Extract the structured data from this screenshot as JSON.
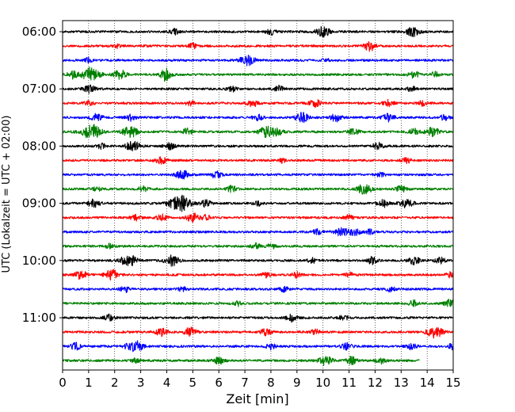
{
  "chart_data": {
    "type": "line",
    "subtype": "helicorder",
    "xlabel": "Zeit  [min]",
    "ylabel": "UTC (Lokalzeit = UTC + 02:00)",
    "xlim": [
      0,
      15
    ],
    "x_ticks": [
      0,
      1,
      2,
      3,
      4,
      5,
      6,
      7,
      8,
      9,
      10,
      11,
      12,
      13,
      14,
      15
    ],
    "y_tick_labels": [
      "06:00",
      "07:00",
      "08:00",
      "09:00",
      "10:00",
      "11:00"
    ],
    "grid": "vertical-dotted",
    "legend": "none",
    "trace_interval_minutes": 15,
    "trace_colors": [
      "#000000",
      "#ff0000",
      "#0000ff",
      "#008000"
    ],
    "traces": [
      {
        "start": "06:00",
        "color": "#000000",
        "events": [
          [
            4.3,
            0.3
          ],
          [
            8,
            0.35
          ],
          [
            10,
            0.6
          ],
          [
            13.45,
            0.55
          ]
        ]
      },
      {
        "start": "06:15",
        "color": "#ff0000",
        "events": [
          [
            2.1,
            0.2
          ],
          [
            5,
            0.3
          ],
          [
            11.8,
            0.55
          ]
        ]
      },
      {
        "start": "06:30",
        "color": "#0000ff",
        "events": [
          [
            1,
            0.3
          ],
          [
            7.1,
            0.65
          ],
          [
            10.1,
            0.2
          ]
        ]
      },
      {
        "start": "06:45",
        "color": "#008000",
        "events": [
          [
            0.4,
            0.45
          ],
          [
            1.1,
            0.85
          ],
          [
            2.2,
            0.55
          ],
          [
            3.9,
            0.35
          ],
          [
            4.0,
            0.45
          ],
          [
            13.5,
            0.4
          ],
          [
            14.3,
            0.3
          ]
        ]
      },
      {
        "start": "07:00",
        "color": "#000000",
        "events": [
          [
            1.0,
            0.5
          ],
          [
            6.5,
            0.3
          ],
          [
            8.3,
            0.35
          ],
          [
            13.4,
            0.3
          ]
        ]
      },
      {
        "start": "07:15",
        "color": "#ff0000",
        "events": [
          [
            1.0,
            0.3
          ],
          [
            4.9,
            0.3
          ],
          [
            7.3,
            0.4
          ],
          [
            9.7,
            0.45
          ],
          [
            12.5,
            0.4
          ],
          [
            13.8,
            0.3
          ]
        ]
      },
      {
        "start": "07:30",
        "color": "#0000ff",
        "events": [
          [
            1.3,
            0.45
          ],
          [
            2.6,
            0.4
          ],
          [
            7.5,
            0.35
          ],
          [
            9.2,
            0.55
          ],
          [
            10.5,
            0.45
          ],
          [
            12.5,
            0.45
          ],
          [
            14.7,
            0.35
          ]
        ]
      },
      {
        "start": "07:45",
        "color": "#008000",
        "events": [
          [
            1.1,
            0.9
          ],
          [
            2.6,
            0.65
          ],
          [
            4.8,
            0.4
          ],
          [
            7.8,
            0.6
          ],
          [
            8.2,
            0.5
          ],
          [
            11.2,
            0.4
          ],
          [
            13.5,
            0.35
          ],
          [
            14.2,
            0.55
          ]
        ]
      },
      {
        "start": "08:00",
        "color": "#000000",
        "events": [
          [
            1.5,
            0.3
          ],
          [
            2.7,
            0.6
          ],
          [
            4.1,
            0.4
          ],
          [
            12.1,
            0.4
          ]
        ]
      },
      {
        "start": "08:15",
        "color": "#ff0000",
        "events": [
          [
            3.8,
            0.45
          ],
          [
            8.4,
            0.3
          ],
          [
            13.2,
            0.3
          ]
        ]
      },
      {
        "start": "08:30",
        "color": "#0000ff",
        "events": [
          [
            4.6,
            0.55
          ],
          [
            5.9,
            0.4
          ],
          [
            12.2,
            0.3
          ]
        ]
      },
      {
        "start": "08:45",
        "color": "#008000",
        "events": [
          [
            1.3,
            0.3
          ],
          [
            3.1,
            0.35
          ],
          [
            6.5,
            0.35
          ],
          [
            11.5,
            0.4
          ],
          [
            11.7,
            0.45
          ],
          [
            13.0,
            0.4
          ]
        ]
      },
      {
        "start": "09:00",
        "color": "#000000",
        "events": [
          [
            1.2,
            0.45
          ],
          [
            4.5,
            1.0
          ],
          [
            5.5,
            0.4
          ],
          [
            7.5,
            0.3
          ],
          [
            12.3,
            0.45
          ],
          [
            13.2,
            0.55
          ]
        ]
      },
      {
        "start": "09:15",
        "color": "#ff0000",
        "events": [
          [
            2.8,
            0.35
          ],
          [
            3.8,
            0.4
          ],
          [
            5.0,
            0.5
          ],
          [
            5.5,
            0.3
          ],
          [
            11.0,
            0.3
          ]
        ]
      },
      {
        "start": "09:30",
        "color": "#0000ff",
        "events": [
          [
            9.8,
            0.35
          ],
          [
            10.7,
            0.5
          ],
          [
            11.2,
            0.45
          ],
          [
            11.8,
            0.3
          ]
        ]
      },
      {
        "start": "09:45",
        "color": "#008000",
        "events": [
          [
            1.8,
            0.3
          ],
          [
            7.4,
            0.35
          ],
          [
            8.0,
            0.3
          ]
        ]
      },
      {
        "start": "10:00",
        "color": "#000000",
        "events": [
          [
            2.4,
            0.45
          ],
          [
            2.7,
            0.45
          ],
          [
            4.2,
            0.6
          ],
          [
            9.6,
            0.3
          ],
          [
            11.9,
            0.4
          ],
          [
            13.5,
            0.45
          ],
          [
            14.5,
            0.35
          ]
        ]
      },
      {
        "start": "10:15",
        "color": "#ff0000",
        "events": [
          [
            0.7,
            0.5
          ],
          [
            1.9,
            0.6
          ],
          [
            7.8,
            0.3
          ],
          [
            9.0,
            0.3
          ],
          [
            11.0,
            0.3
          ],
          [
            14.9,
            0.3
          ]
        ]
      },
      {
        "start": "10:30",
        "color": "#0000ff",
        "events": [
          [
            2.4,
            0.35
          ],
          [
            4.6,
            0.3
          ],
          [
            8.5,
            0.3
          ],
          [
            12.6,
            0.3
          ]
        ]
      },
      {
        "start": "10:45",
        "color": "#008000",
        "events": [
          [
            6.7,
            0.3
          ],
          [
            13.5,
            0.35
          ],
          [
            14.9,
            0.5
          ]
        ]
      },
      {
        "start": "11:00",
        "color": "#000000",
        "events": [
          [
            1.8,
            0.35
          ],
          [
            8.8,
            0.45
          ],
          [
            10.8,
            0.3
          ]
        ]
      },
      {
        "start": "11:15",
        "color": "#ff0000",
        "events": [
          [
            3.8,
            0.45
          ],
          [
            4.9,
            0.5
          ],
          [
            7.8,
            0.4
          ],
          [
            9.7,
            0.3
          ],
          [
            14.3,
            0.7
          ]
        ]
      },
      {
        "start": "11:30",
        "color": "#0000ff",
        "events": [
          [
            0.5,
            0.4
          ],
          [
            2.6,
            0.45
          ],
          [
            2.9,
            0.5
          ],
          [
            8.0,
            0.35
          ],
          [
            10.9,
            0.4
          ],
          [
            13.4,
            0.35
          ],
          [
            15.0,
            0.35
          ]
        ]
      },
      {
        "start": "11:45",
        "color": "#008000",
        "end_minute": 13.7,
        "events": [
          [
            2.8,
            0.3
          ],
          [
            6.0,
            0.4
          ],
          [
            10.1,
            0.55
          ],
          [
            11.1,
            0.45
          ],
          [
            12.2,
            0.35
          ]
        ]
      }
    ]
  }
}
